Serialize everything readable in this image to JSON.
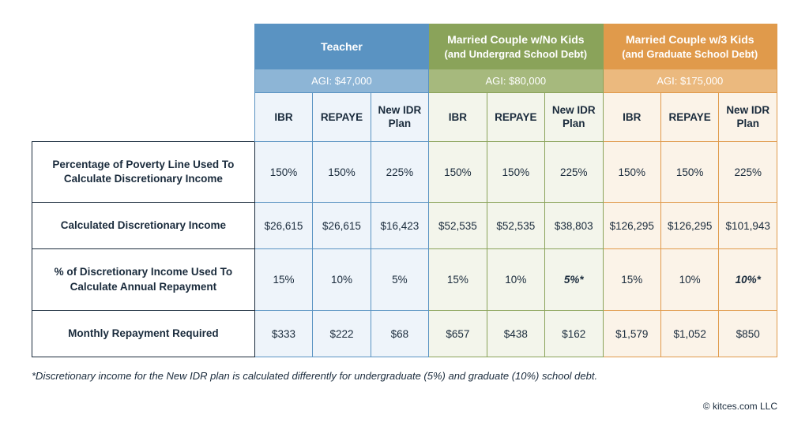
{
  "colors": {
    "blue_dark": "#5a93c2",
    "blue_mid": "#8db5d6",
    "blue_light": "#eef4fa",
    "blue_border": "#5a93c2",
    "green_dark": "#8aa35a",
    "green_mid": "#a6b97d",
    "green_light": "#f3f5eb",
    "green_border": "#8aa35a",
    "orange_dark": "#e09a4b",
    "orange_mid": "#ebb97e",
    "orange_light": "#fbf3e8",
    "orange_border": "#e09a4b",
    "text": "#1a2b3c"
  },
  "scenarios": [
    {
      "title": "Teacher",
      "subtitle": "",
      "agi": "AGI: $47,000",
      "color_key": "blue"
    },
    {
      "title": "Married Couple w/No Kids",
      "subtitle": "(and Undergrad School Debt)",
      "agi": "AGI: $80,000",
      "color_key": "green"
    },
    {
      "title": "Married Couple w/3 Kids",
      "subtitle": "(and Graduate School Debt)",
      "agi": "AGI: $175,000",
      "color_key": "orange"
    }
  ],
  "plans": [
    "IBR",
    "REPAYE",
    "New IDR Plan"
  ],
  "rows": [
    {
      "label": "Percentage of Poverty Line Used To Calculate Discretionary Income",
      "values": [
        "150%",
        "150%",
        "225%",
        "150%",
        "150%",
        "225%",
        "150%",
        "150%",
        "225%"
      ],
      "italic_flags": [
        false,
        false,
        false,
        false,
        false,
        false,
        false,
        false,
        false
      ]
    },
    {
      "label": "Calculated Discretionary Income",
      "values": [
        "$26,615",
        "$26,615",
        "$16,423",
        "$52,535",
        "$52,535",
        "$38,803",
        "$126,295",
        "$126,295",
        "$101,943"
      ],
      "italic_flags": [
        false,
        false,
        false,
        false,
        false,
        false,
        false,
        false,
        false
      ]
    },
    {
      "label": "% of Discretionary Income Used To Calculate Annual Repayment",
      "values": [
        "15%",
        "10%",
        "5%",
        "15%",
        "10%",
        "5%*",
        "15%",
        "10%",
        "10%*"
      ],
      "italic_flags": [
        false,
        false,
        false,
        false,
        false,
        true,
        false,
        false,
        true
      ]
    },
    {
      "label": "Monthly Repayment Required",
      "values": [
        "$333",
        "$222",
        "$68",
        "$657",
        "$438",
        "$162",
        "$1,579",
        "$1,052",
        "$850"
      ],
      "italic_flags": [
        false,
        false,
        false,
        false,
        false,
        false,
        false,
        false,
        false
      ]
    }
  ],
  "footnote": "*Discretionary income for the New IDR plan is calculated differently for undergraduate (5%) and graduate (10%) school debt.",
  "copyright": "© kitces.com LLC"
}
